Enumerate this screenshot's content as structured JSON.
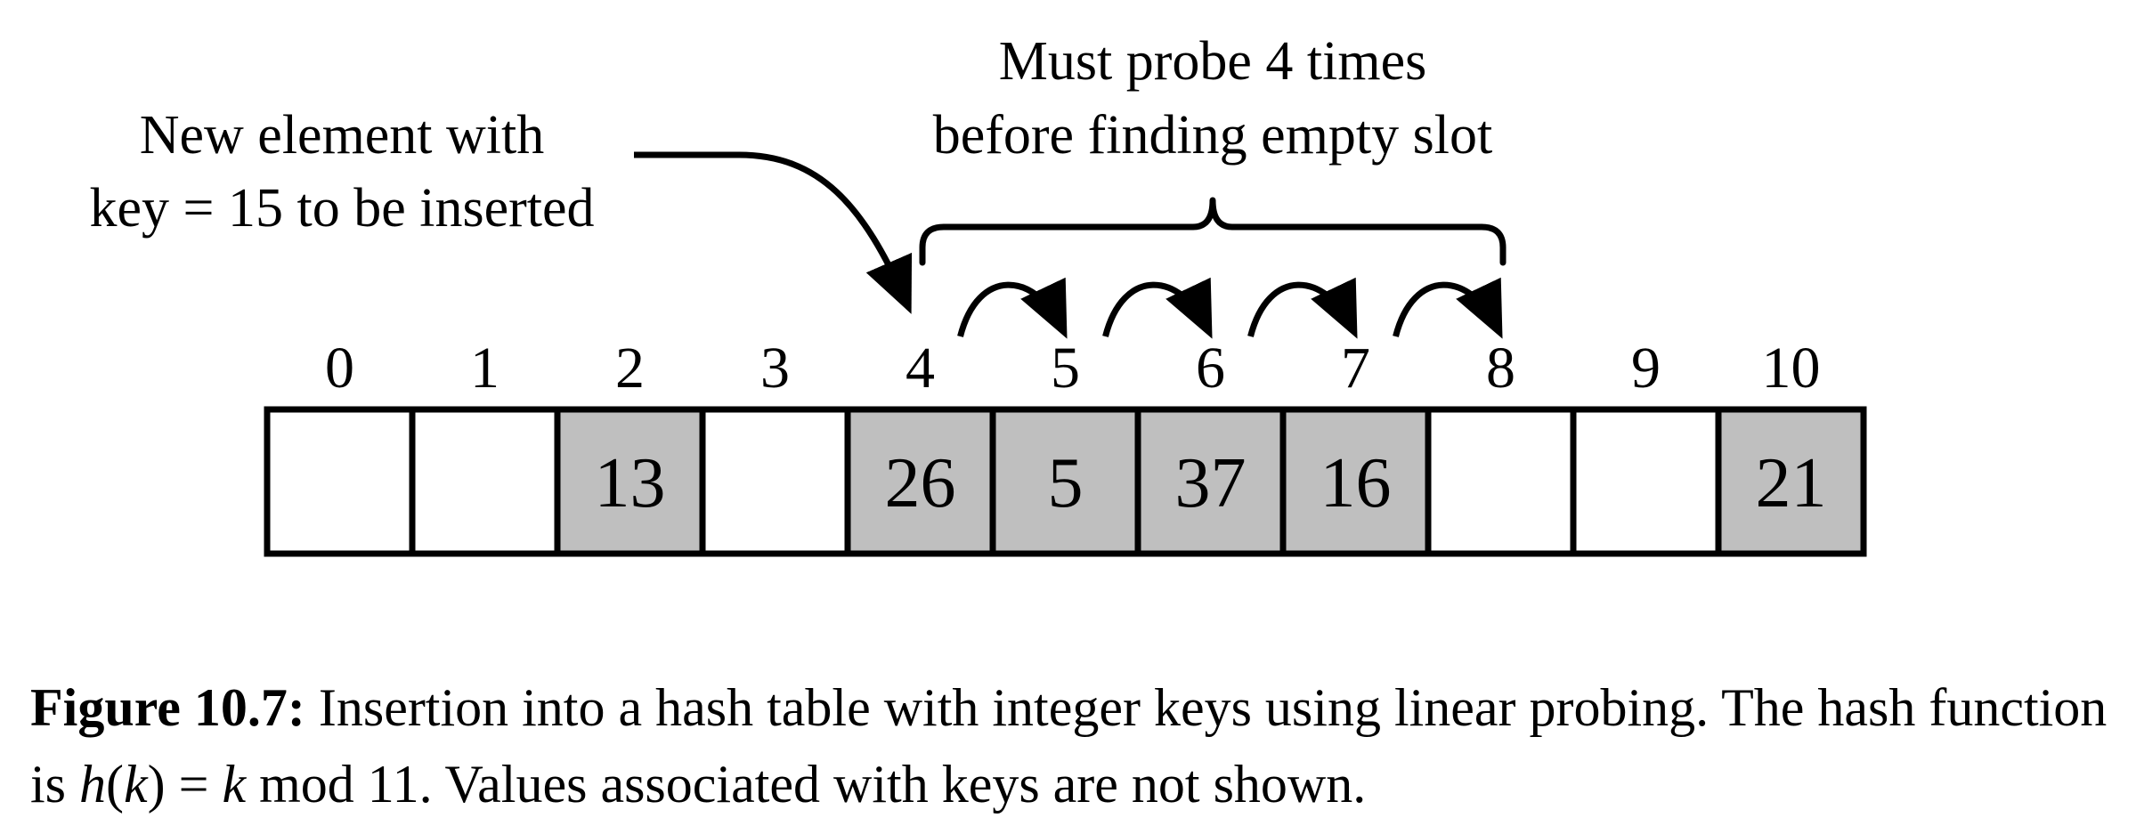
{
  "diagram": {
    "insert_note": {
      "line1": "New element with",
      "line2": "key = 15 to be inserted"
    },
    "probe_note": {
      "line1": "Must probe 4 times",
      "line2": "before finding empty slot"
    },
    "slots": [
      {
        "index": "0",
        "value": "",
        "filled": false
      },
      {
        "index": "1",
        "value": "",
        "filled": false
      },
      {
        "index": "2",
        "value": "13",
        "filled": true
      },
      {
        "index": "3",
        "value": "",
        "filled": false
      },
      {
        "index": "4",
        "value": "26",
        "filled": true
      },
      {
        "index": "5",
        "value": "5",
        "filled": true
      },
      {
        "index": "6",
        "value": "37",
        "filled": true
      },
      {
        "index": "7",
        "value": "16",
        "filled": true
      },
      {
        "index": "8",
        "value": "",
        "filled": false
      },
      {
        "index": "9",
        "value": "",
        "filled": false
      },
      {
        "index": "10",
        "value": "21",
        "filled": true
      }
    ],
    "insert_target_index": 4,
    "probe_hops": [
      [
        4,
        5
      ],
      [
        5,
        6
      ],
      [
        6,
        7
      ],
      [
        7,
        8
      ]
    ],
    "colors": {
      "filled": "#bfbfbf",
      "empty": "#ffffff",
      "stroke": "#000000"
    }
  },
  "caption": {
    "label": "Figure 10.7:",
    "text_before": " Insertion into a hash table with integer keys using linear probing. The hash function is ",
    "formula_h": "h",
    "formula_open": "(",
    "formula_k": "k",
    "formula_close": ")",
    "formula_eq": " = ",
    "formula_k2": "k",
    "formula_mod": " mod 11",
    "text_after": ". Values associated with keys are not shown."
  }
}
